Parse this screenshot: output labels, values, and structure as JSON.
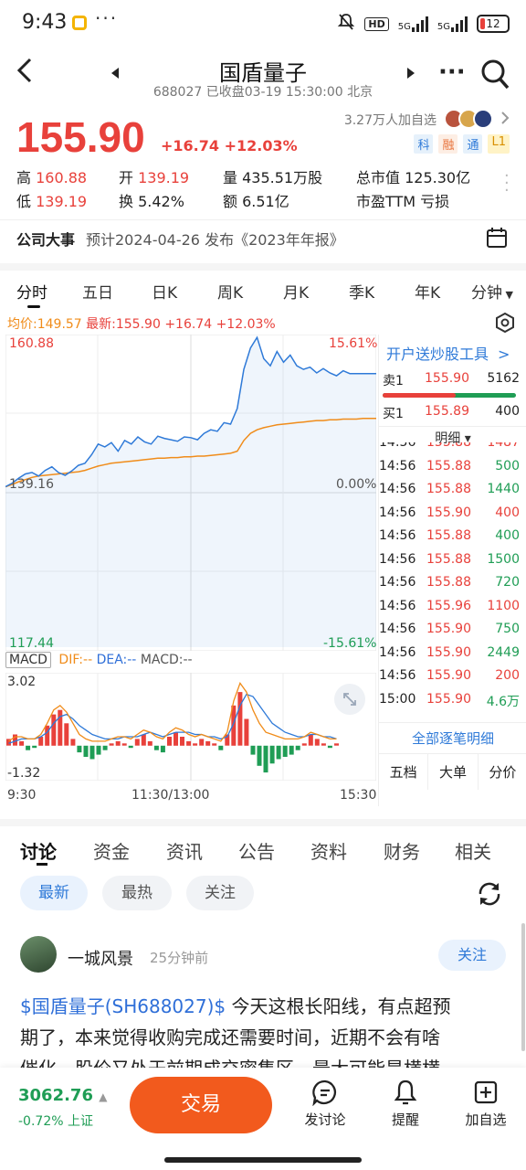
{
  "status_bar": {
    "time": "9:43",
    "dots": "···",
    "hd": "HD",
    "net1": "5G",
    "net2": "5G",
    "battery": "12"
  },
  "nav": {
    "title": "国盾量子",
    "subtitle": "688027 已收盘03-19 15:30:00 北京",
    "more": "···"
  },
  "quote": {
    "price": "155.90",
    "change": "+16.74",
    "change_pct": "+12.03%",
    "watchers": "3.27万人加自选",
    "tags": [
      "科",
      "融",
      "通",
      "L1"
    ],
    "stats": [
      {
        "label": "高",
        "value": "160.88"
      },
      {
        "label": "开",
        "value": "139.19"
      },
      {
        "label": "量",
        "value": "435.51万股"
      },
      {
        "label": "总市值",
        "value": "125.30亿"
      },
      {
        "label": "低",
        "value": "139.19"
      },
      {
        "label": "换",
        "value": "5.42%"
      },
      {
        "label": "额",
        "value": "6.51亿"
      },
      {
        "label": "市盈TTM",
        "value": "亏损"
      }
    ]
  },
  "event": {
    "label": "公司大事",
    "text": "预计2024-04-26 发布《2023年年报》"
  },
  "period_tabs": [
    "分时",
    "五日",
    "日K",
    "周K",
    "月K",
    "季K",
    "年K",
    "分钟"
  ],
  "chart_header": {
    "avg": "均价:149.57",
    "latest": "最新:155.90",
    "chg": "+16.74",
    "pct": "+12.03%"
  },
  "chart_data": {
    "type": "line",
    "series": [
      {
        "name": "价格",
        "color": "#2f7ad8",
        "values": [
          140.0,
          140.5,
          141.2,
          141.8,
          142.0,
          141.5,
          142.3,
          142.8,
          142.0,
          141.6,
          142.2,
          143.0,
          143.3,
          144.5,
          146.0,
          145.6,
          146.2,
          145.0,
          146.5,
          146.0,
          147.0,
          146.3,
          146.0,
          147.1,
          146.8,
          146.6,
          146.4,
          147.0,
          146.9,
          146.6,
          147.5,
          148.0,
          147.8,
          149.0,
          148.8,
          151.0,
          156.5,
          159.5,
          161.0,
          158.0,
          157.0,
          159.0,
          157.5,
          158.5,
          157.0,
          156.5,
          156.8,
          156.0,
          156.6,
          156.0,
          155.6,
          156.3,
          155.9,
          155.9,
          155.9,
          155.9,
          155.9
        ]
      },
      {
        "name": "均价",
        "color": "#f08c1a",
        "values": [
          140.0,
          140.3,
          140.7,
          141.0,
          141.3,
          141.5,
          141.6,
          141.7,
          141.8,
          141.9,
          142.0,
          142.1,
          142.3,
          142.6,
          142.9,
          143.1,
          143.3,
          143.4,
          143.5,
          143.6,
          143.7,
          143.8,
          143.9,
          144.0,
          144.0,
          144.1,
          144.1,
          144.2,
          144.2,
          144.3,
          144.3,
          144.4,
          144.5,
          144.6,
          144.7,
          145.0,
          146.5,
          147.5,
          148.0,
          148.3,
          148.5,
          148.7,
          148.8,
          148.9,
          149.0,
          149.1,
          149.2,
          149.3,
          149.3,
          149.4,
          149.4,
          149.5,
          149.5,
          149.5,
          149.6,
          149.6,
          149.6
        ]
      }
    ],
    "y_labels": {
      "top": "160.88",
      "mid": "139.16",
      "bottom": "117.44",
      "top_pct": "15.61%",
      "mid_pct": "0.00%",
      "bottom_pct": "-15.61%"
    },
    "ylim": [
      117.44,
      160.88
    ],
    "x_labels": [
      "9:30",
      "11:30/13:00",
      "15:30"
    ]
  },
  "macd": {
    "label": "MACD",
    "dif": "DIF:--",
    "dea": "DEA:--",
    "macd": "MACD:--",
    "top": "3.02",
    "bottom": "-1.32",
    "bars": [
      0.3,
      0.5,
      0.2,
      -0.2,
      -0.1,
      0.4,
      0.9,
      1.4,
      1.6,
      1.0,
      0.3,
      -0.3,
      -0.5,
      -0.6,
      -0.4,
      -0.2,
      0.1,
      0.2,
      0.1,
      -0.1,
      0.3,
      0.5,
      0.2,
      -0.2,
      -0.3,
      0.4,
      0.6,
      0.4,
      0.2,
      0.1,
      0.3,
      0.2,
      0.1,
      -0.2,
      0.5,
      1.8,
      2.4,
      1.2,
      -0.4,
      -0.9,
      -1.2,
      -0.8,
      -0.6,
      -0.5,
      -0.4,
      -0.2,
      0.1,
      0.5,
      0.3,
      0.1,
      -0.1,
      0.1
    ],
    "dif_values": [
      0.2,
      0.4,
      0.4,
      0.3,
      0.3,
      0.5,
      1.0,
      1.6,
      1.8,
      1.5,
      1.0,
      0.5,
      0.3,
      0.2,
      0.2,
      0.2,
      0.3,
      0.4,
      0.4,
      0.3,
      0.5,
      0.7,
      0.6,
      0.4,
      0.3,
      0.6,
      0.8,
      0.7,
      0.5,
      0.4,
      0.5,
      0.4,
      0.3,
      0.2,
      0.6,
      2.0,
      2.8,
      2.4,
      1.6,
      1.0,
      0.6,
      0.5,
      0.4,
      0.3,
      0.3,
      0.3,
      0.4,
      0.6,
      0.5,
      0.4,
      0.3,
      0.3
    ],
    "dea_values": [
      0.1,
      0.2,
      0.3,
      0.3,
      0.3,
      0.4,
      0.6,
      1.0,
      1.3,
      1.4,
      1.2,
      0.9,
      0.7,
      0.5,
      0.4,
      0.3,
      0.3,
      0.3,
      0.4,
      0.4,
      0.4,
      0.5,
      0.6,
      0.5,
      0.4,
      0.5,
      0.6,
      0.6,
      0.6,
      0.5,
      0.5,
      0.4,
      0.4,
      0.3,
      0.4,
      1.0,
      1.8,
      2.3,
      2.2,
      1.8,
      1.4,
      1.0,
      0.8,
      0.6,
      0.5,
      0.4,
      0.4,
      0.5,
      0.5,
      0.4,
      0.4,
      0.3
    ],
    "ylim": [
      -1.32,
      3.02
    ]
  },
  "order_book": {
    "promo": "开户送炒股工具",
    "ask": {
      "label": "卖1",
      "price": "155.90",
      "vol": "5162"
    },
    "bid": {
      "label": "买1",
      "price": "155.89",
      "vol": "400"
    },
    "detail_label": "明细",
    "ticks": [
      {
        "t": "14:56",
        "p": "155.88",
        "v": "1487",
        "c": "red"
      },
      {
        "t": "14:56",
        "p": "155.88",
        "v": "500",
        "c": "green"
      },
      {
        "t": "14:56",
        "p": "155.88",
        "v": "1440",
        "c": "green"
      },
      {
        "t": "14:56",
        "p": "155.90",
        "v": "400",
        "c": "red"
      },
      {
        "t": "14:56",
        "p": "155.88",
        "v": "400",
        "c": "green"
      },
      {
        "t": "14:56",
        "p": "155.88",
        "v": "1500",
        "c": "green"
      },
      {
        "t": "14:56",
        "p": "155.88",
        "v": "720",
        "c": "green"
      },
      {
        "t": "14:56",
        "p": "155.96",
        "v": "1100",
        "c": "red"
      },
      {
        "t": "14:56",
        "p": "155.90",
        "v": "750",
        "c": "green"
      },
      {
        "t": "14:56",
        "p": "155.90",
        "v": "2449",
        "c": "green"
      },
      {
        "t": "14:56",
        "p": "155.90",
        "v": "200",
        "c": "red"
      },
      {
        "t": "15:00",
        "p": "155.90",
        "v": "4.6万",
        "c": "green"
      }
    ],
    "all_detail": "全部逐笔明细",
    "tabs": [
      "五档",
      "大单",
      "分价"
    ]
  },
  "discussion": {
    "tabs": [
      "讨论",
      "资金",
      "资讯",
      "公告",
      "资料",
      "财务",
      "相关"
    ],
    "filters": [
      "最新",
      "最热",
      "关注"
    ],
    "post": {
      "user": "一城风景",
      "time": "25分钟前",
      "follow": "关注",
      "tag": "$国盾量子(SH688027)$",
      "text1": " 今天这根长阳线，有点超预",
      "text2": "期了，本来觉得收购完成还需要时间，近期不会有啥",
      "text3": "催化，股价又处于前期成交密集区，最大可能是横横"
    }
  },
  "bottom_bar": {
    "index_value": "3062.76",
    "index_arrow": "▲",
    "index_change": "-0.72% 上证",
    "trade": "交易",
    "actions": [
      "发讨论",
      "提醒",
      "加自选"
    ]
  }
}
